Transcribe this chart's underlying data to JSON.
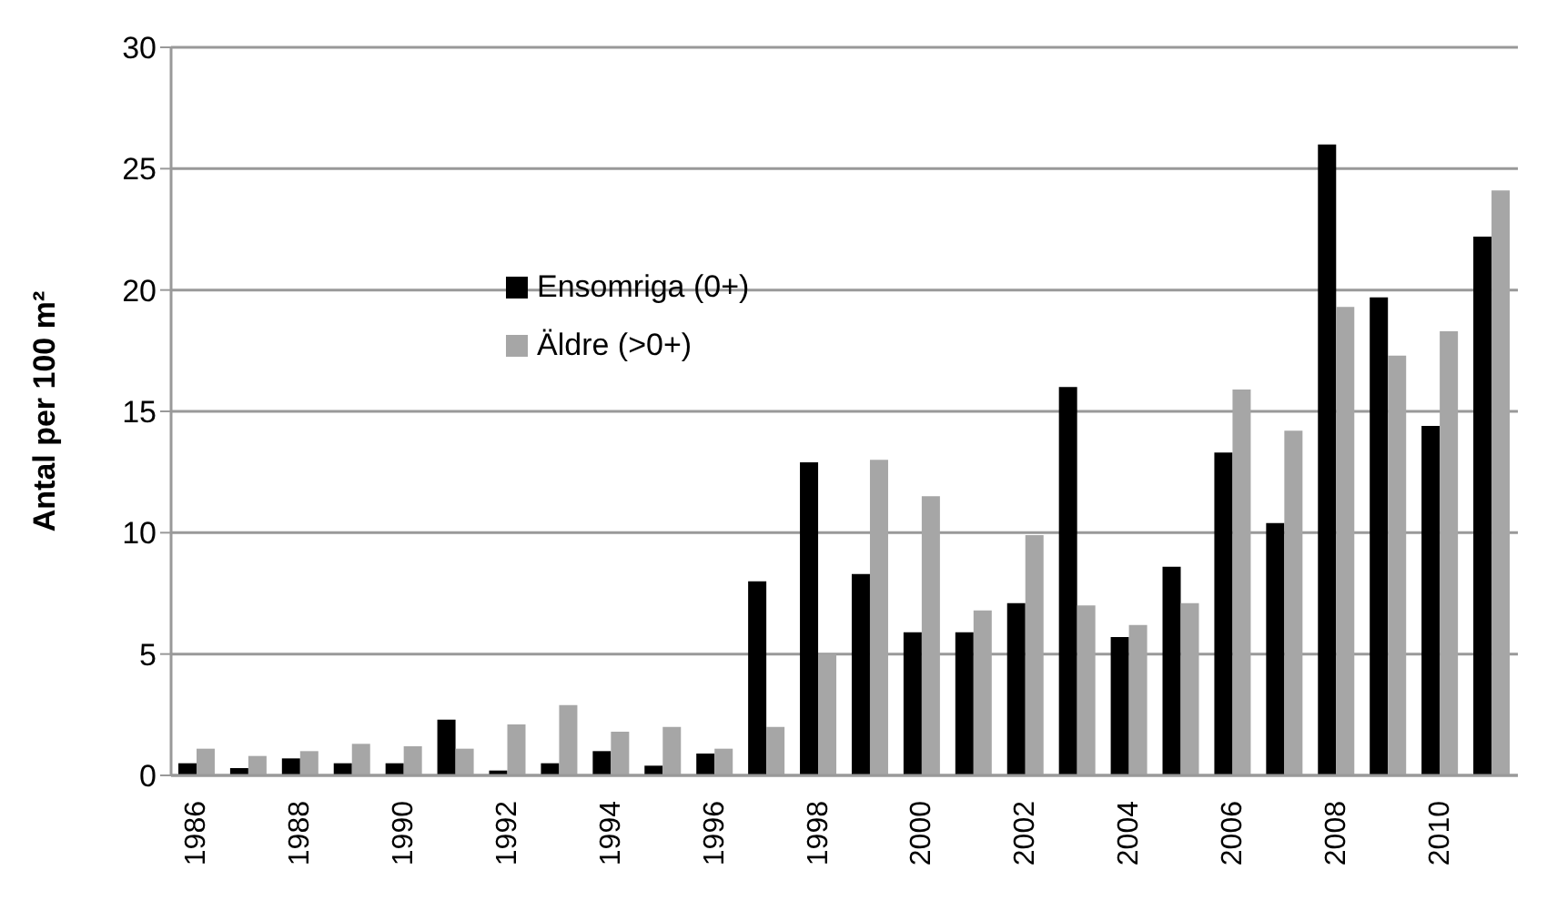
{
  "chart_data": {
    "type": "bar",
    "ylabel": "Antal per 100 m²",
    "categories": [
      "1986",
      null,
      "1988",
      null,
      "1990",
      null,
      "1992",
      null,
      "1994",
      null,
      "1996",
      null,
      "1998",
      null,
      "2000",
      null,
      "2002",
      null,
      "2004",
      null,
      "2006",
      null,
      "2008",
      null,
      "2010",
      null
    ],
    "series": [
      {
        "name": "Ensomriga (0+)",
        "color": "#000000",
        "values": [
          0.5,
          0.3,
          0.7,
          0.5,
          0.5,
          2.3,
          0.2,
          0.5,
          1.0,
          0.4,
          0.9,
          8.0,
          12.9,
          8.3,
          5.9,
          5.9,
          7.1,
          16.0,
          5.7,
          8.6,
          13.3,
          10.4,
          26.0,
          19.7,
          14.4,
          22.2
        ]
      },
      {
        "name": "Äldre (>0+)",
        "color": "#a6a6a6",
        "values": [
          1.1,
          0.8,
          1.0,
          1.3,
          1.2,
          1.1,
          2.1,
          2.9,
          1.8,
          2.0,
          1.1,
          2.0,
          5.0,
          13.0,
          11.5,
          6.8,
          9.9,
          7.0,
          6.2,
          7.1,
          15.9,
          14.2,
          19.3,
          17.3,
          18.3,
          24.1
        ]
      }
    ],
    "ylim": [
      0,
      30
    ],
    "yticks": [
      0,
      5,
      10,
      15,
      20,
      25,
      30
    ],
    "grid": "y",
    "legend": "top"
  }
}
